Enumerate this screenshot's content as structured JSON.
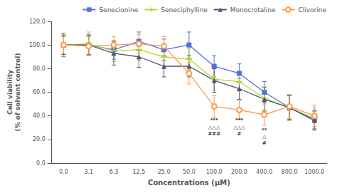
{
  "chart_data": {
    "type": "line",
    "xlabel": "Concentrations (μM)",
    "ylabel": "Cell viability\n(% of solvent control)",
    "categories": [
      "0.0",
      "3.1",
      "6.3",
      "12.5",
      "25.0",
      "50.0",
      "100.0",
      "200.0",
      "400.0",
      "800.0",
      "1000.0"
    ],
    "series": [
      {
        "name": "Senecionine",
        "marker": "square",
        "values": [
          100.0,
          100.0,
          96.0,
          103.0,
          96.0,
          100.0,
          82.0,
          76.0,
          60.0,
          47.0,
          37.0
        ],
        "errors": [
          10,
          9,
          8,
          8,
          9,
          11,
          9,
          8,
          9,
          11,
          8
        ]
      },
      {
        "name": "Seneciphylline",
        "marker": "plus",
        "values": [
          100.0,
          101.0,
          95.0,
          96.0,
          90.0,
          88.0,
          71.0,
          69.0,
          55.0,
          47.0,
          38.0
        ],
        "errors": [
          9,
          10,
          9,
          9,
          10,
          9,
          9,
          8,
          10,
          11,
          9
        ]
      },
      {
        "name": "Monocrotaline",
        "marker": "triangle",
        "values": [
          100.0,
          100.0,
          93.0,
          90.0,
          82.0,
          82.0,
          70.0,
          63.0,
          54.0,
          47.0,
          36.0
        ],
        "errors": [
          8,
          8,
          10,
          9,
          9,
          9,
          10,
          9,
          10,
          10,
          8
        ]
      },
      {
        "name": "Clivorine",
        "marker": "open_circle",
        "values": [
          100.0,
          99.0,
          100.0,
          101.0,
          99.0,
          76.0,
          48.0,
          45.0,
          41.0,
          48.0,
          40.0
        ],
        "errors": [
          7,
          8,
          7,
          8,
          8,
          9,
          9,
          8,
          9,
          10,
          9
        ]
      }
    ],
    "ylim": [
      0.0,
      120.0
    ],
    "yticks": [
      {
        "value": 0,
        "label": "0.0"
      },
      {
        "value": 20,
        "label": "20.0"
      },
      {
        "value": 40,
        "label": "40.0"
      },
      {
        "value": 60,
        "label": "60.0"
      },
      {
        "value": 80,
        "label": "80.0"
      },
      {
        "value": 100,
        "label": "100.0"
      },
      {
        "value": 120,
        "label": "120.0"
      }
    ],
    "grid": false,
    "legend": "upper right",
    "annotations": [
      {
        "x": "100.0",
        "y": 38,
        "text": "***"
      },
      {
        "x": "100.0",
        "y": 32.5,
        "text": "△△△"
      },
      {
        "x": "100.0",
        "y": 27,
        "text": "###"
      },
      {
        "x": "200.0",
        "y": 38,
        "text": "***"
      },
      {
        "x": "200.0",
        "y": 32.5,
        "text": "△△△"
      },
      {
        "x": "200.0",
        "y": 27,
        "text": "#"
      },
      {
        "x": "400.0",
        "y": 30,
        "text": "**"
      },
      {
        "x": "400.0",
        "y": 24.5,
        "text": "△"
      },
      {
        "x": "400.0",
        "y": 19,
        "text": "#"
      }
    ]
  }
}
